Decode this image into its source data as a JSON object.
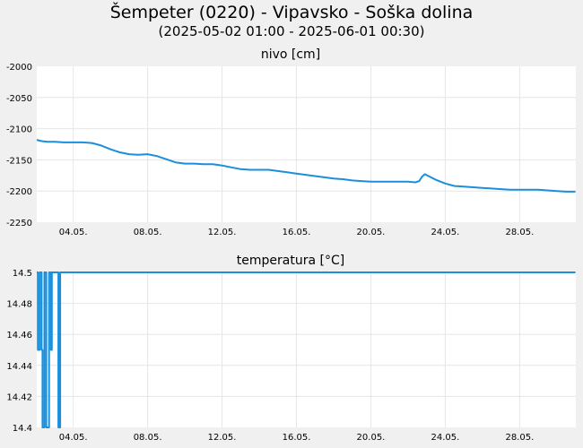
{
  "page": {
    "title": "Šempeter (0220) - Vipavsko - Soška dolina",
    "subtitle": "(2025-05-02 01:00 - 2025-06-01 00:30)"
  },
  "colors": {
    "background": "#f0f0f0",
    "plot_background": "#ffffff",
    "series": "#1a8fdc",
    "grid": "#e6e6e6"
  },
  "chart_data": [
    {
      "type": "line",
      "title": "nivo [cm]",
      "xlabel": "",
      "ylabel": "",
      "x_tick_labels": [
        "04.05.",
        "08.05.",
        "12.05.",
        "16.05.",
        "20.05.",
        "24.05.",
        "28.05."
      ],
      "x_tick_days": [
        4,
        8,
        12,
        16,
        20,
        24,
        28
      ],
      "y_tick_labels": [
        "-2000",
        "-2050",
        "-2100",
        "-2150",
        "-2200",
        "-2250"
      ],
      "xlim": [
        2.04,
        31.02
      ],
      "ylim": [
        -2250,
        -2000
      ],
      "grid": true,
      "series": [
        {
          "x": [
            2.04,
            2.3,
            2.6,
            3.0,
            3.5,
            4.0,
            4.5,
            5.0,
            5.5,
            6.0,
            6.5,
            7.0,
            7.5,
            8.0,
            8.5,
            9.0,
            9.5,
            10.0,
            10.5,
            11.0,
            11.5,
            12.0,
            12.5,
            13.0,
            13.5,
            14.0,
            14.5,
            15.0,
            15.5,
            16.0,
            16.5,
            17.0,
            17.5,
            18.0,
            18.5,
            19.0,
            19.5,
            20.0,
            20.5,
            21.0,
            21.5,
            22.0,
            22.4,
            22.6,
            22.75,
            22.9,
            23.1,
            23.5,
            24.0,
            24.5,
            25.0,
            25.5,
            26.0,
            26.5,
            27.0,
            27.5,
            28.0,
            28.5,
            29.0,
            29.5,
            30.0,
            30.5,
            31.0
          ],
          "y": [
            -2118,
            -2120,
            -2121,
            -2121,
            -2122,
            -2122,
            -2122,
            -2123,
            -2127,
            -2133,
            -2138,
            -2141,
            -2142,
            -2141,
            -2144,
            -2149,
            -2154,
            -2156,
            -2156,
            -2157,
            -2157,
            -2159,
            -2162,
            -2165,
            -2166,
            -2166,
            -2166,
            -2168,
            -2170,
            -2172,
            -2174,
            -2176,
            -2178,
            -2180,
            -2181,
            -2183,
            -2184,
            -2185,
            -2185,
            -2185,
            -2185,
            -2185,
            -2186,
            -2184,
            -2177,
            -2173,
            -2176,
            -2182,
            -2188,
            -2192,
            -2193,
            -2194,
            -2195,
            -2196,
            -2197,
            -2198,
            -2198,
            -2198,
            -2198,
            -2199,
            -2200,
            -2201,
            -2201
          ]
        }
      ]
    },
    {
      "type": "line",
      "title": "temperatura [°C]",
      "xlabel": "",
      "ylabel": "",
      "x_tick_labels": [
        "04.05.",
        "08.05.",
        "12.05.",
        "16.05.",
        "20.05.",
        "24.05.",
        "28.05."
      ],
      "x_tick_days": [
        4,
        8,
        12,
        16,
        20,
        24,
        28
      ],
      "y_tick_labels": [
        "14.5",
        "14.48",
        "14.46",
        "14.44",
        "14.42",
        "14.4"
      ],
      "xlim": [
        2.04,
        31.02
      ],
      "ylim": [
        14.4,
        14.5
      ],
      "grid": true,
      "series": [
        {
          "x": [
            2.04,
            2.1,
            2.1,
            2.2,
            2.2,
            2.3,
            2.3,
            2.35,
            2.35,
            2.45,
            2.45,
            2.55,
            2.55,
            2.7,
            2.7,
            2.8,
            2.8,
            2.85,
            2.85,
            3.2,
            3.2,
            3.3,
            3.3,
            31.0
          ],
          "y": [
            14.5,
            14.5,
            14.45,
            14.45,
            14.5,
            14.5,
            14.45,
            14.45,
            14.4,
            14.4,
            14.5,
            14.5,
            14.4,
            14.4,
            14.5,
            14.5,
            14.45,
            14.45,
            14.5,
            14.5,
            14.4,
            14.4,
            14.5,
            14.5
          ]
        }
      ]
    }
  ]
}
